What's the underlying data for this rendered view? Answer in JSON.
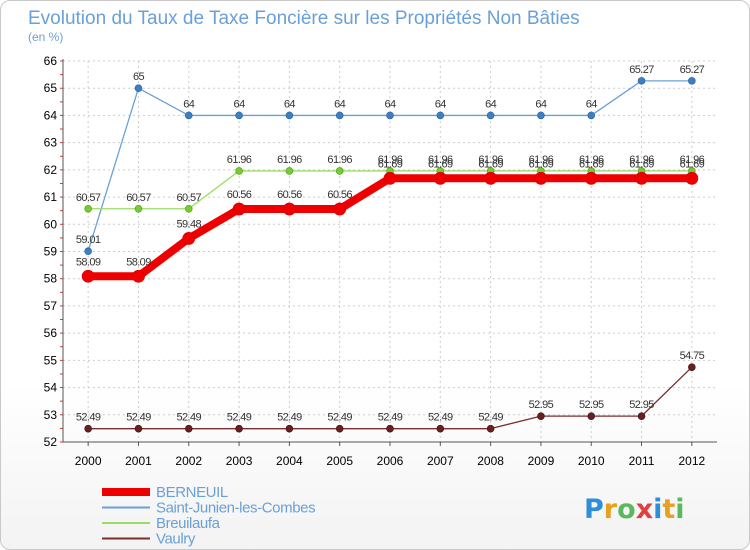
{
  "chart_data": {
    "type": "line",
    "title": "Evolution du Taux de Taxe Foncière sur les Propriétés Non Bâties",
    "unit_label": "(en %)",
    "x": [
      "2000",
      "2001",
      "2002",
      "2003",
      "2004",
      "2005",
      "2006",
      "2007",
      "2008",
      "2009",
      "2010",
      "2011",
      "2012"
    ],
    "ylim": [
      52,
      66
    ],
    "yticks": [
      52,
      53,
      54,
      55,
      56,
      57,
      58,
      59,
      60,
      61,
      62,
      63,
      64,
      65,
      66
    ],
    "grid": true,
    "legend_position": "bottom-left",
    "series": [
      {
        "name": "Vaulry",
        "color": "#7a2e2e",
        "values": [
          52.49,
          52.49,
          52.49,
          52.49,
          52.49,
          52.49,
          52.49,
          52.49,
          52.49,
          52.95,
          52.95,
          52.95,
          54.75
        ],
        "labels": [
          "52.49",
          "52.49",
          "52.49",
          "52.49",
          "52.49",
          "52.49",
          "52.49",
          "52.49",
          "52.49",
          "52.95",
          "52.95",
          "52.95",
          "54.75"
        ]
      },
      {
        "name": "Saint-Junien-les-Combes",
        "color": "#6aa0d8",
        "values": [
          59.01,
          65,
          64,
          64,
          64,
          64,
          64,
          64,
          64,
          64,
          64,
          65.27,
          65.27
        ],
        "labels": [
          "59.01",
          "65",
          "64",
          "64",
          "64",
          "64",
          "64",
          "64",
          "64",
          "64",
          "64",
          "65.27",
          "65.27"
        ]
      },
      {
        "name": "Breuilaufa",
        "color": "#99dd66",
        "values": [
          60.57,
          60.57,
          60.57,
          61.96,
          61.96,
          61.96,
          61.96,
          61.96,
          61.96,
          61.96,
          61.96,
          61.96,
          61.96
        ],
        "labels": [
          "60.57",
          "60.57",
          "60.57",
          "61.96",
          "61.96",
          "61.96",
          "61.96",
          "61.96",
          "61.96",
          "61.96",
          "61.96",
          "61.96",
          "61.96"
        ]
      },
      {
        "name": "BERNEUIL",
        "color": "#ee0000",
        "values": [
          58.09,
          58.09,
          59.48,
          60.56,
          60.56,
          60.56,
          61.69,
          61.69,
          61.69,
          61.69,
          61.69,
          61.69,
          61.69
        ],
        "labels": [
          "58.09",
          "58.09",
          "59.48",
          "60.56",
          "60.56",
          "60.56",
          "61.69",
          "61.69",
          "61.69",
          "61.69",
          "61.69",
          "61.69",
          "61.69"
        ]
      }
    ],
    "legend": [
      "BERNEUIL",
      "Saint-Junien-les-Combes",
      "Breuilaufa",
      "Vaulry"
    ]
  },
  "logo": {
    "letters": [
      "P",
      "r",
      "o",
      "x",
      "i",
      "t",
      "i"
    ],
    "colors": [
      "#2e8fd8",
      "#e8a020",
      "#5cb85c",
      "#e04040",
      "#2e8fd8",
      "#e8a020",
      "#5cb85c"
    ]
  }
}
